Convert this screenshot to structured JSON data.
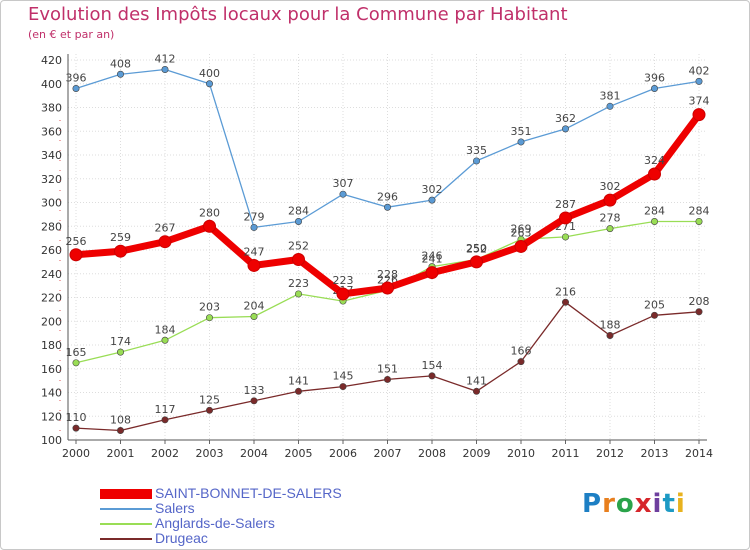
{
  "header": {
    "title": "Evolution des Impôts locaux pour la Commune par Habitant",
    "subtitle": "(en € et par an)"
  },
  "logo": {
    "text": "Proxiti",
    "letter_colors": [
      "#1d7fc4",
      "#e87f1e",
      "#2aa34a",
      "#d6262b",
      "#6e3f9e",
      "#1d9ac4",
      "#e8b21e"
    ]
  },
  "chart_data": {
    "type": "line",
    "title": "Evolution des Impôts locaux pour la Commune par Habitant",
    "subtitle": "(en € et par an)",
    "xlabel": "",
    "ylabel": "",
    "ylim": [
      100,
      420
    ],
    "yticks": [
      100,
      120,
      140,
      160,
      180,
      200,
      220,
      240,
      260,
      280,
      300,
      320,
      340,
      360,
      380,
      400,
      420
    ],
    "grid": true,
    "legend_position": "bottom-left",
    "x": [
      "2000",
      "2001",
      "2002",
      "2003",
      "2004",
      "2005",
      "2006",
      "2007",
      "2008",
      "2009",
      "2010",
      "2011",
      "2012",
      "2013",
      "2014"
    ],
    "series": [
      {
        "name": "SAINT-BONNET-DE-SALERS",
        "color": "#ee0000",
        "emphasis": true,
        "values": [
          256,
          259,
          267,
          280,
          247,
          252,
          223,
          228,
          241,
          250,
          263,
          287,
          302,
          324,
          374
        ]
      },
      {
        "name": "Salers",
        "color": "#5b9bd5",
        "emphasis": false,
        "values": [
          396,
          408,
          412,
          400,
          279,
          284,
          307,
          296,
          302,
          335,
          351,
          362,
          381,
          396,
          402
        ]
      },
      {
        "name": "Anglards-de-Salers",
        "color": "#99dd55",
        "emphasis": false,
        "values": [
          165,
          174,
          184,
          203,
          204,
          223,
          217,
          226,
          246,
          252,
          269,
          271,
          278,
          284,
          284
        ]
      },
      {
        "name": "Drugeac",
        "color": "#7a2a2a",
        "emphasis": false,
        "values": [
          110,
          108,
          117,
          125,
          133,
          141,
          145,
          151,
          154,
          141,
          166,
          216,
          188,
          205,
          208
        ]
      }
    ]
  }
}
